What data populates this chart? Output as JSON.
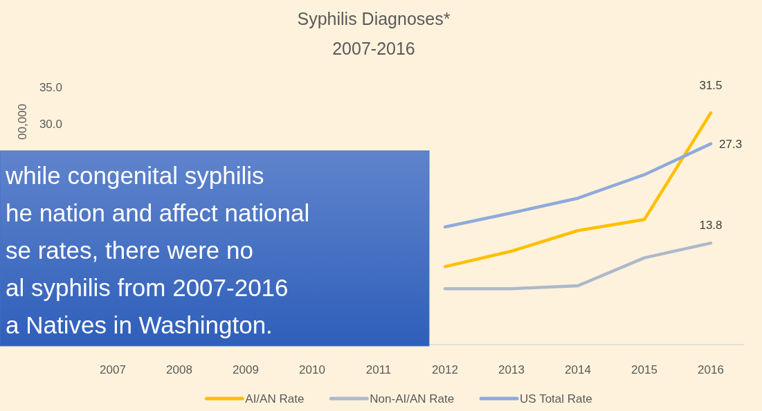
{
  "chart_data": {
    "type": "line",
    "title": "Syphilis Diagnoses*",
    "subtitle": "2007-2016",
    "ylabel": "00,000",
    "categories": [
      "2007",
      "2008",
      "2009",
      "2010",
      "2011",
      "2012",
      "2013",
      "2014",
      "2015",
      "2016"
    ],
    "series": [
      {
        "name": "AI/AN Rate",
        "color": "#ffc000",
        "values": [
          null,
          null,
          null,
          null,
          null,
          10.6,
          12.7,
          15.5,
          17.0,
          31.5
        ],
        "value_labels": [
          null,
          null,
          null,
          null,
          null,
          null,
          null,
          null,
          null,
          "31.5"
        ]
      },
      {
        "name": "Non-AI/AN Rate",
        "color": "#adb9ca",
        "values": [
          null,
          null,
          null,
          null,
          null,
          7.6,
          7.6,
          8.0,
          11.8,
          13.8
        ],
        "value_labels": [
          null,
          null,
          null,
          null,
          null,
          null,
          null,
          null,
          null,
          "13.8"
        ]
      },
      {
        "name": "US Total Rate",
        "color": "#8faadc",
        "values": [
          null,
          null,
          null,
          null,
          null,
          16.0,
          17.9,
          19.9,
          23.1,
          27.3
        ],
        "value_labels": [
          null,
          null,
          null,
          null,
          null,
          null,
          null,
          null,
          null,
          "27.3"
        ]
      }
    ],
    "ylim": [
      0,
      35
    ],
    "yticks": [
      {
        "value": 30,
        "label": "30.0"
      },
      {
        "value": 35,
        "label": "35.0"
      }
    ],
    "grid": false,
    "legend": "bottom",
    "marker": "none",
    "line_style": "solid",
    "annotations": [
      "while congenital syphilis\nhe nation and affect national\nse rates, there were no\nal syphilis from 2007-2016\na Natives in Washington."
    ]
  }
}
